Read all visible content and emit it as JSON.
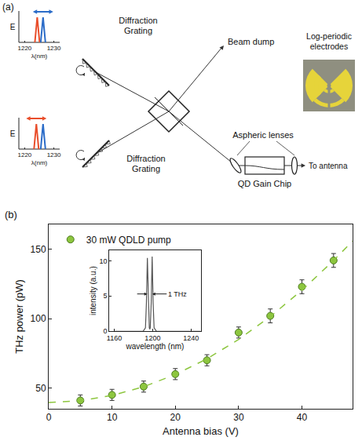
{
  "panel_a": {
    "label": "(a)",
    "spectra": [
      {
        "y_label": "E",
        "x_label": "λ(nm)",
        "xlim": [
          1218,
          1232
        ],
        "xticks": [
          1220,
          1230
        ],
        "peaks": [
          {
            "center": 1224.3,
            "color": "#e94e2b"
          },
          {
            "center": 1226.3,
            "color": "#2b6cc8"
          }
        ],
        "arrow_color": "#2b6cc8"
      },
      {
        "y_label": "E",
        "x_label": "λ(nm)",
        "xlim": [
          1218,
          1232
        ],
        "xticks": [
          1220,
          1230
        ],
        "peaks": [
          {
            "center": 1224.0,
            "color": "#e94e2b"
          },
          {
            "center": 1226.3,
            "color": "#2b6cc8"
          }
        ],
        "arrow_color": "#e94e2b"
      }
    ],
    "gratings": [
      "Diffraction Grating",
      "Diffraction Grating"
    ],
    "beam_dump": "Beam dump",
    "lenses": "Aspheric lenses",
    "chip": "QD Gain Chip",
    "output": "To antenna",
    "electrodes": "Log-periodic electrodes"
  },
  "chart_data": [
    {
      "type": "scatter",
      "annotations": [
        "(b)"
      ],
      "x_label": "Antenna bias (V)",
      "y_label": "THz power (pW)",
      "xlim": [
        0,
        48
      ],
      "xticks": [
        0,
        10,
        20,
        30,
        40
      ],
      "ylim": [
        35,
        168
      ],
      "yticks": [
        50,
        100,
        150
      ],
      "grid": false,
      "legend": "upper left",
      "series": [
        {
          "name": "30 mW QDLD pump",
          "type": "scatter",
          "marker": "circle",
          "color": "#8dc63f",
          "x": [
            5,
            10,
            15,
            20,
            25,
            30,
            35,
            40,
            45
          ],
          "values": [
            41,
            45,
            51,
            60,
            70,
            90,
            102,
            123,
            142
          ],
          "error": [
            4,
            4,
            4,
            4,
            4,
            4,
            5,
            5,
            5
          ]
        },
        {
          "type": "line",
          "line_style": "dashed",
          "color": "#8dc63f",
          "x": [
            0,
            5,
            10,
            15,
            20,
            25,
            30,
            35,
            40,
            45,
            48
          ],
          "values": [
            39.5,
            40.8,
            44.6,
            50.9,
            59.7,
            71,
            85,
            101.5,
            120.5,
            142,
            156
          ]
        }
      ]
    },
    {
      "type": "line",
      "annotations": [
        "1 THz"
      ],
      "x_label": "wavelength (nm)",
      "y_label": "intensity (a.u.)",
      "xlim": [
        1155,
        1250
      ],
      "xticks": [
        1160,
        1200,
        1240
      ],
      "ylim": [
        0,
        11.5
      ],
      "yticks": [
        0,
        5,
        10
      ],
      "series": [
        {
          "type": "line",
          "color": "#555555",
          "x": [
            1160,
            1190,
            1192.5,
            1193.5,
            1194.5,
            1195.5,
            1196.5,
            1197,
            1197.5,
            1198.5,
            1199.5,
            1200.5,
            1201.5,
            1204,
            1250
          ],
          "values": [
            0,
            0,
            0.5,
            4,
            10.4,
            4,
            0.5,
            0.3,
            0.5,
            4,
            10.6,
            4,
            0.5,
            0,
            0
          ]
        }
      ]
    }
  ]
}
